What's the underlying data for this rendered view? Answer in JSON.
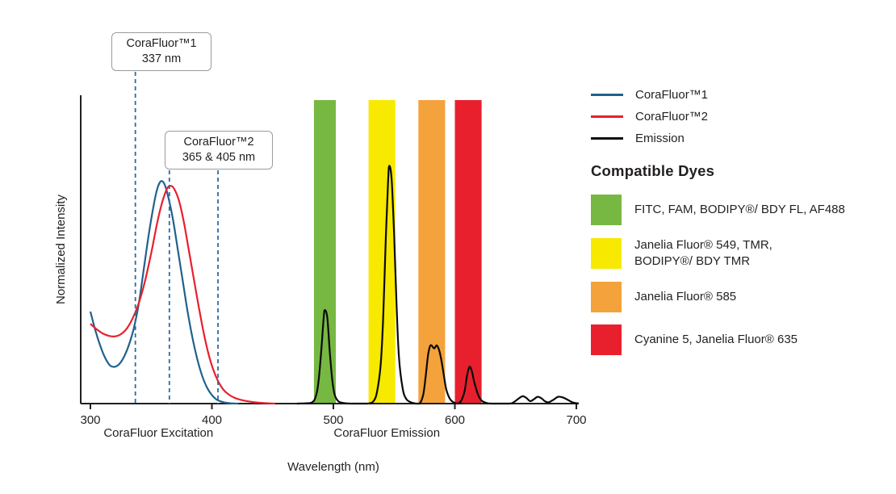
{
  "chart_data": {
    "type": "line",
    "title": "",
    "xlabel": "Wavelength (nm)",
    "ylabel": "Normalized Intensity",
    "xlim": [
      300,
      705
    ],
    "ylim": [
      0,
      1
    ],
    "x_ticks": [
      300,
      400,
      500,
      600,
      700
    ],
    "grid": false,
    "x_region_labels": [
      {
        "label": "CoraFluor Excitation",
        "center_nm": 356
      },
      {
        "label": "CoraFluor Emission",
        "center_nm": 544
      }
    ],
    "bands": [
      {
        "name": "green-filter",
        "range_nm": [
          484,
          502
        ],
        "color": "#77b843"
      },
      {
        "name": "yellow-filter",
        "range_nm": [
          529,
          551
        ],
        "color": "#f7e900"
      },
      {
        "name": "orange-filter",
        "range_nm": [
          570,
          592
        ],
        "color": "#f4a23c"
      },
      {
        "name": "red-filter",
        "range_nm": [
          600,
          622
        ],
        "color": "#e8202e"
      }
    ],
    "guide_lines_nm": [
      337,
      365,
      405
    ],
    "guide_line_color": "#2d6ca2",
    "series": [
      {
        "name": "CoraFluor™1",
        "color": "#21618c",
        "points": [
          [
            300,
            0.3
          ],
          [
            304,
            0.24
          ],
          [
            308,
            0.19
          ],
          [
            312,
            0.15
          ],
          [
            316,
            0.125
          ],
          [
            320,
            0.12
          ],
          [
            324,
            0.13
          ],
          [
            328,
            0.155
          ],
          [
            332,
            0.195
          ],
          [
            336,
            0.25
          ],
          [
            340,
            0.33
          ],
          [
            344,
            0.44
          ],
          [
            348,
            0.55
          ],
          [
            352,
            0.645
          ],
          [
            355,
            0.7
          ],
          [
            358,
            0.725
          ],
          [
            361,
            0.715
          ],
          [
            364,
            0.675
          ],
          [
            368,
            0.6
          ],
          [
            372,
            0.5
          ],
          [
            376,
            0.4
          ],
          [
            380,
            0.3
          ],
          [
            384,
            0.215
          ],
          [
            388,
            0.145
          ],
          [
            392,
            0.09
          ],
          [
            396,
            0.052
          ],
          [
            400,
            0.028
          ],
          [
            404,
            0.013
          ],
          [
            409,
            0.005
          ],
          [
            415,
            0.001
          ],
          [
            422,
            0
          ]
        ]
      },
      {
        "name": "CoraFluor™2",
        "color": "#e8202e",
        "points": [
          [
            300,
            0.26
          ],
          [
            305,
            0.243
          ],
          [
            310,
            0.229
          ],
          [
            315,
            0.221
          ],
          [
            320,
            0.219
          ],
          [
            325,
            0.226
          ],
          [
            330,
            0.245
          ],
          [
            335,
            0.28
          ],
          [
            340,
            0.33
          ],
          [
            345,
            0.4
          ],
          [
            350,
            0.49
          ],
          [
            355,
            0.59
          ],
          [
            359,
            0.655
          ],
          [
            363,
            0.7
          ],
          [
            366,
            0.71
          ],
          [
            369,
            0.7
          ],
          [
            373,
            0.66
          ],
          [
            377,
            0.59
          ],
          [
            381,
            0.5
          ],
          [
            385,
            0.41
          ],
          [
            389,
            0.32
          ],
          [
            393,
            0.235
          ],
          [
            397,
            0.165
          ],
          [
            401,
            0.112
          ],
          [
            405,
            0.074
          ],
          [
            409,
            0.048
          ],
          [
            413,
            0.032
          ],
          [
            418,
            0.02
          ],
          [
            424,
            0.012
          ],
          [
            432,
            0.006
          ],
          [
            442,
            0.002
          ],
          [
            452,
            0
          ]
        ]
      },
      {
        "name": "Emission",
        "color": "#0a0a0a",
        "points": [
          [
            470,
            0
          ],
          [
            482,
            0.003
          ],
          [
            486,
            0.03
          ],
          [
            488,
            0.08
          ],
          [
            490,
            0.17
          ],
          [
            492,
            0.28
          ],
          [
            493,
            0.305
          ],
          [
            495,
            0.28
          ],
          [
            497,
            0.17
          ],
          [
            499,
            0.08
          ],
          [
            501,
            0.03
          ],
          [
            504,
            0.008
          ],
          [
            508,
            0.002
          ],
          [
            514,
            0
          ],
          [
            528,
            0
          ],
          [
            533,
            0.008
          ],
          [
            536,
            0.04
          ],
          [
            539,
            0.13
          ],
          [
            541,
            0.28
          ],
          [
            543,
            0.52
          ],
          [
            545,
            0.72
          ],
          [
            546,
            0.775
          ],
          [
            548,
            0.73
          ],
          [
            550,
            0.55
          ],
          [
            552,
            0.32
          ],
          [
            554,
            0.15
          ],
          [
            557,
            0.05
          ],
          [
            560,
            0.015
          ],
          [
            564,
            0.004
          ],
          [
            568,
            0
          ],
          [
            571,
            0
          ],
          [
            574,
            0.03
          ],
          [
            576,
            0.09
          ],
          [
            578,
            0.16
          ],
          [
            580,
            0.19
          ],
          [
            583,
            0.18
          ],
          [
            585,
            0.19
          ],
          [
            587,
            0.175
          ],
          [
            589,
            0.14
          ],
          [
            591,
            0.09
          ],
          [
            593,
            0.045
          ],
          [
            596,
            0.015
          ],
          [
            599,
            0.004
          ],
          [
            602,
            0
          ],
          [
            605,
            0.008
          ],
          [
            608,
            0.04
          ],
          [
            610,
            0.09
          ],
          [
            612,
            0.12
          ],
          [
            614,
            0.105
          ],
          [
            616,
            0.07
          ],
          [
            619,
            0.03
          ],
          [
            622,
            0.01
          ],
          [
            626,
            0.002
          ],
          [
            630,
            0
          ],
          [
            645,
            0
          ],
          [
            649,
            0.006
          ],
          [
            653,
            0.018
          ],
          [
            656,
            0.024
          ],
          [
            659,
            0.018
          ],
          [
            662,
            0.008
          ],
          [
            665,
            0.014
          ],
          [
            668,
            0.022
          ],
          [
            671,
            0.018
          ],
          [
            674,
            0.008
          ],
          [
            677,
            0.004
          ],
          [
            681,
            0.012
          ],
          [
            685,
            0.022
          ],
          [
            689,
            0.02
          ],
          [
            693,
            0.012
          ],
          [
            697,
            0.004
          ],
          [
            702,
            0
          ]
        ]
      }
    ]
  },
  "callouts": [
    {
      "title": "CoraFluor™1",
      "subtitle": "337 nm",
      "anchors_nm": [
        337
      ]
    },
    {
      "title": "CoraFluor™2",
      "subtitle": "365 & 405 nm",
      "anchors_nm": [
        365,
        405
      ]
    }
  ],
  "legend": {
    "items": [
      {
        "label": "CoraFluor™1",
        "color": "#21618c"
      },
      {
        "label": "CoraFluor™2",
        "color": "#e8202e"
      },
      {
        "label": "Emission",
        "color": "#0a0a0a"
      }
    ]
  },
  "compatible_dyes": {
    "heading": "Compatible Dyes",
    "items": [
      {
        "label": "FITC, FAM, BODIPY®/ BDY FL, AF488",
        "color": "#77b843"
      },
      {
        "label": "Janelia Fluor® 549, TMR,\nBODIPY®/ BDY TMR",
        "color": "#f7e900"
      },
      {
        "label": "Janelia Fluor® 585",
        "color": "#f4a23c"
      },
      {
        "label": "Cyanine 5, Janelia Fluor® 635",
        "color": "#e8202e"
      }
    ]
  }
}
